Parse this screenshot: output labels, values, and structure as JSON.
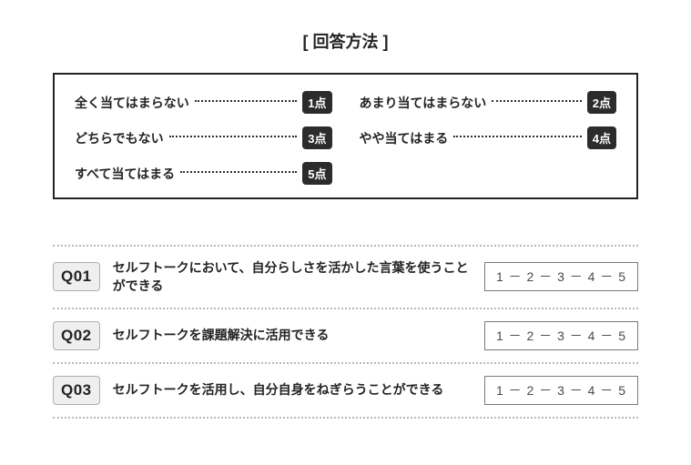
{
  "title": "[ 回答方法 ]",
  "legend": {
    "items": [
      {
        "label": "全く当てはまらない",
        "score": "1点"
      },
      {
        "label": "あまり当てはまらない",
        "score": "2点"
      },
      {
        "label": "どちらでもない",
        "score": "3点"
      },
      {
        "label": "やや当てはまる",
        "score": "4点"
      },
      {
        "label": "すべて当てはまる",
        "score": "5点"
      }
    ],
    "border_color": "#232323",
    "badge_bg": "#2c2c2c",
    "badge_fg": "#ffffff",
    "leader_color": "#2c2c2c"
  },
  "questions": [
    {
      "num": "Q01",
      "text": "セルフトークにおいて、自分らしさを活かした言葉を使うことができる",
      "scale": "1 － 2 － 3 － 4 － 5"
    },
    {
      "num": "Q02",
      "text": "セルフトークを課題解決に活用できる",
      "scale": "1 － 2 － 3 － 4 － 5"
    },
    {
      "num": "Q03",
      "text": "セルフトークを活用し、自分自身をねぎらうことができる",
      "scale": "1 － 2 － 3 － 4 － 5"
    }
  ],
  "style": {
    "divider_color": "#b8b8b8",
    "qnum_bg": "#efefef",
    "qnum_border": "#aeaeae",
    "answer_border": "#7a7a7a",
    "answer_text_color": "#4a4a4a",
    "text_color": "#232323",
    "background": "#ffffff",
    "title_fontsize": 18,
    "label_fontsize": 14,
    "qtext_fontsize": 14
  }
}
